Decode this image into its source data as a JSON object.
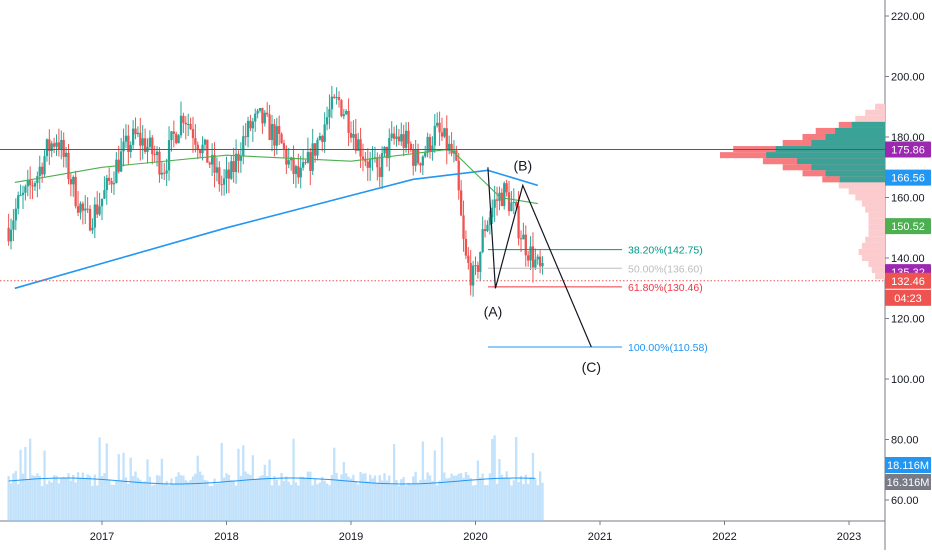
{
  "chart_data": {
    "type": "candlestick",
    "x_axis": {
      "labels": [
        "2017",
        "2018",
        "2019",
        "2020",
        "2021",
        "2022",
        "2023"
      ]
    },
    "y_axis": {
      "labels": [
        "220.00",
        "200.00",
        "180.00",
        "160.00",
        "140.00",
        "120.00",
        "100.00",
        "80.00",
        "60.00"
      ],
      "range": [
        55,
        230
      ]
    },
    "price_series": {
      "t_start": 2016.25,
      "t_end": 2020.55,
      "closes": [
        150,
        158,
        162,
        168,
        176,
        180,
        170,
        160,
        152,
        156,
        162,
        170,
        176,
        180,
        178,
        174,
        170,
        180,
        188,
        182,
        176,
        170,
        164,
        168,
        178,
        184,
        186,
        182,
        178,
        170,
        166,
        172,
        180,
        188,
        192,
        186,
        178,
        172,
        168,
        176,
        180,
        178,
        172,
        176,
        182,
        178,
        172,
        140,
        132,
        150,
        158,
        162,
        156,
        146,
        140,
        134
      ],
      "colors": {
        "up": "#26a69a",
        "down": "#ef5350"
      }
    },
    "moving_averages": [
      {
        "t": [
          2016.3,
          2018.0,
          2019.5,
          2020.1,
          2020.5
        ],
        "v": [
          130,
          150,
          166,
          169,
          164
        ],
        "color": "#2196f3"
      },
      {
        "t": [
          2016.3,
          2017.0,
          2018.0,
          2019.0,
          2019.8,
          2020.2,
          2020.5
        ],
        "v": [
          165,
          170,
          174,
          172,
          176,
          160,
          158
        ],
        "color": "#4caf50"
      }
    ],
    "horizontal_line": {
      "value": 175.86,
      "color": "#9c27b0"
    },
    "dotted_line": {
      "value": 132.46,
      "color": "#ef5350"
    },
    "fibonacci": [
      {
        "label": "38.20%(142.75)",
        "value": 142.75,
        "color": "#009688"
      },
      {
        "label": "50.00%(136.60)",
        "value": 136.6,
        "color": "#bdbdbd"
      },
      {
        "label": "61.80%(130.46)",
        "value": 130.46,
        "color": "#f23645"
      },
      {
        "label": "100.00%(110.58)",
        "value": 110.58,
        "color": "#2196f3"
      }
    ],
    "wave_labels": [
      {
        "label": "(A)",
        "t": 2020.14,
        "v": 130
      },
      {
        "label": "(B)",
        "t": 2020.38,
        "v": 165
      },
      {
        "label": "(C)",
        "t": 2020.93,
        "v": 110.58
      }
    ],
    "wave_path": {
      "t": [
        2020.1,
        2020.16,
        2020.38,
        2020.93
      ],
      "v": [
        170,
        130,
        164,
        110.58
      ]
    },
    "price_badges": [
      {
        "value": 175.86,
        "text": "175.86",
        "color": "#9c27b0"
      },
      {
        "value": 166.56,
        "text": "166.56",
        "color": "#2196f3"
      },
      {
        "value": 150.52,
        "text": "150.52",
        "color": "#4caf50"
      },
      {
        "value": 135.32,
        "text": "135.32",
        "color": "#9c27b0"
      },
      {
        "value": 132.46,
        "text": "132.46",
        "color": "#ef5350"
      }
    ],
    "countdown": "04:23",
    "volume": {
      "badges": [
        {
          "text": "18.116M",
          "color": "#2196f3"
        },
        {
          "text": "16.316M",
          "color": "#787b86"
        }
      ],
      "color": "#90caf9"
    },
    "volume_profile": {
      "rows": [
        {
          "v": 190,
          "w": 0.06
        },
        {
          "v": 188,
          "w": 0.12
        },
        {
          "v": 186,
          "w": 0.18
        },
        {
          "v": 184,
          "w": 0.28
        },
        {
          "v": 182,
          "w": 0.42
        },
        {
          "v": 180,
          "w": 0.5
        },
        {
          "v": 178,
          "w": 0.62
        },
        {
          "v": 176,
          "w": 0.92
        },
        {
          "v": 174,
          "w": 1.0
        },
        {
          "v": 172,
          "w": 0.74
        },
        {
          "v": 170,
          "w": 0.62
        },
        {
          "v": 168,
          "w": 0.5
        },
        {
          "v": 166,
          "w": 0.38
        },
        {
          "v": 164,
          "w": 0.28
        },
        {
          "v": 162,
          "w": 0.22
        },
        {
          "v": 160,
          "w": 0.18
        },
        {
          "v": 158,
          "w": 0.14
        },
        {
          "v": 156,
          "w": 0.12
        },
        {
          "v": 154,
          "w": 0.1
        },
        {
          "v": 152,
          "w": 0.1
        },
        {
          "v": 150,
          "w": 0.1
        },
        {
          "v": 148,
          "w": 0.1
        },
        {
          "v": 146,
          "w": 0.12
        },
        {
          "v": 144,
          "w": 0.14
        },
        {
          "v": 142,
          "w": 0.16
        },
        {
          "v": 140,
          "w": 0.14
        },
        {
          "v": 138,
          "w": 0.1
        },
        {
          "v": 136,
          "w": 0.08
        },
        {
          "v": 134,
          "w": 0.06
        }
      ],
      "value_area": [
        166,
        184
      ],
      "colors": {
        "main": "#f77c80",
        "light": "#fccbcd",
        "value_area": "#26a69a"
      }
    }
  }
}
